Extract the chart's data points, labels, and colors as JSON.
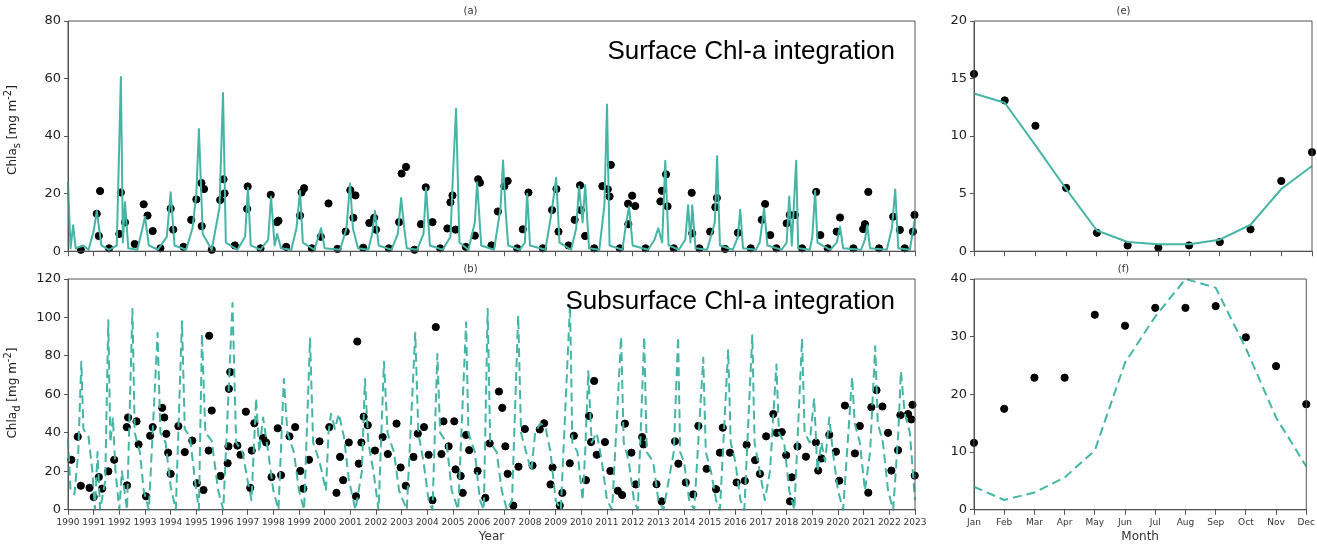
{
  "chart_data": [
    {
      "type": "line",
      "title": "(a)",
      "ylabel": "Chla$_{s}$  [mg m$^{-2}$]",
      "annotations": [
        "Surface Chl-a integration"
      ],
      "xlim": [
        1990,
        2023
      ],
      "xticks": [
        1990,
        1991,
        1992,
        1993,
        1994,
        1995,
        1996,
        1997,
        1998,
        1999,
        2000,
        2001,
        2002,
        2003,
        2004,
        2005,
        2006,
        2007,
        2008,
        2009,
        2010,
        2011,
        2012,
        2013,
        2014,
        2015,
        2016,
        2017,
        2018,
        2019,
        2020,
        2021,
        2022,
        2023
      ],
      "ylim": [
        0,
        80
      ],
      "yticks": [
        0,
        20,
        40,
        60,
        80
      ],
      "tick_labels": "y",
      "series": [
        {
          "type": "line",
          "color": "#45b5a5",
          "line_style": "solid",
          "x": [
            1990,
            1990.1,
            1990.2,
            1990.3,
            1990.6,
            1990.8,
            1991,
            1991.12,
            1991.3,
            1991.6,
            1991.9,
            1992.06,
            1992.14,
            1992.22,
            1992.35,
            1992.7,
            1992.85,
            1993,
            1993.15,
            1993.5,
            1993.85,
            1994,
            1994.15,
            1994.6,
            1994.85,
            1995,
            1995.1,
            1995.25,
            1995.6,
            1995.9,
            1996.04,
            1996.15,
            1996.6,
            1996.9,
            1997.01,
            1997.12,
            1997.5,
            1997.8,
            1997.91,
            1998.05,
            1998.15,
            1998.3,
            1998.7,
            1998.9,
            1999.04,
            1999.15,
            1999.6,
            1999.86,
            2000,
            2000.6,
            2000.85,
            2000.99,
            2001.1,
            2001.3,
            2001.7,
            2001.85,
            2001.96,
            2002.1,
            2002.6,
            2002.85,
            2002.98,
            2003.1,
            2003.2,
            2003.6,
            2003.85,
            2003.95,
            2004.1,
            2004.6,
            2004.9,
            2005,
            2005.12,
            2005.25,
            2005.6,
            2005.85,
            2005.94,
            2006.1,
            2006.6,
            2006.85,
            2006.95,
            2007.05,
            2007.15,
            2007.6,
            2007.8,
            2007.89,
            2008,
            2008.6,
            2008.85,
            2009.02,
            2009.15,
            2009.6,
            2009.8,
            2009.91,
            2010.05,
            2010.15,
            2010.3,
            2010.7,
            2010.9,
            2011,
            2011.1,
            2011.6,
            2011.75,
            2011.86,
            2012,
            2012.6,
            2012.85,
            2013,
            2013.15,
            2013.27,
            2013.4,
            2013.8,
            2014.05,
            2014.16,
            2014.25,
            2014.32,
            2014.45,
            2014.9,
            2015.2,
            2015.29,
            2015.4,
            2015.9,
            2016.1,
            2016.19,
            2016.3,
            2016.8,
            2016.95,
            2017.05,
            2017.12,
            2017.25,
            2017.8,
            2018,
            2018.1,
            2018.2,
            2018.37,
            2018.45,
            2018.9,
            2019,
            2019.11,
            2019.2,
            2019.7,
            2019.95,
            2020.08,
            2020.2,
            2020.9,
            2021.05,
            2021.14,
            2021.25,
            2021.9,
            2022.1,
            2022.23,
            2022.35,
            2022.8,
            2023
          ],
          "values": [
            24,
            1,
            9,
            1,
            2,
            0.5,
            7,
            14,
            2,
            0.5,
            2,
            60.5,
            3,
            17,
            1,
            0.5,
            6,
            12,
            2,
            0.5,
            5,
            20.5,
            2,
            0.5,
            8,
            20,
            42.5,
            6,
            0.5,
            15,
            55,
            3,
            0.5,
            5,
            22,
            2,
            0.5,
            4,
            19,
            2,
            6,
            1,
            0.5,
            8,
            21,
            3,
            0.5,
            8,
            1,
            0.5,
            8,
            23.5,
            8,
            1,
            0.5,
            6,
            14,
            2,
            0.5,
            6,
            18.5,
            8,
            1,
            0.5,
            6,
            22,
            2,
            0.5,
            5,
            27,
            49.5,
            3,
            0.5,
            10,
            24,
            2,
            0.5,
            15,
            31.5,
            14,
            2,
            0.5,
            3,
            20,
            2,
            0.5,
            14,
            25.5,
            3,
            0.5,
            8,
            22.5,
            10,
            23,
            1,
            0.5,
            16,
            51,
            2,
            0.5,
            10,
            15.5,
            2,
            0.5,
            4,
            8,
            3,
            31.4,
            2,
            0.5,
            4,
            16,
            3,
            16,
            1,
            0.5,
            10,
            33,
            2,
            0.5,
            5,
            14.4,
            1,
            0.5,
            3,
            10,
            15,
            2,
            0.5,
            3,
            19,
            2,
            31.4,
            1,
            0.5,
            5,
            21,
            3,
            0.5,
            3,
            8.5,
            1,
            0.5,
            4,
            9,
            1,
            0.5,
            8,
            21.4,
            1,
            0.5,
            11.5
          ]
        },
        {
          "type": "scatter",
          "color": "#000000",
          "marker": "circle",
          "x": [
            1990.5,
            1991.12,
            1991.2,
            1991.25,
            1991.6,
            1992,
            1992.06,
            1992.22,
            1992.6,
            1992.95,
            1993.1,
            1993.3,
            1993.6,
            1994,
            1994.1,
            1994.5,
            1994.8,
            1995,
            1995.2,
            1995.21,
            1995.3,
            1995.6,
            1995.93,
            1996.06,
            1996.1,
            1996.5,
            1996.98,
            1997,
            1997.5,
            1997.9,
            1998.14,
            1998.2,
            1998.5,
            1999.04,
            1999.1,
            1999.2,
            1999.5,
            1999.85,
            2000.15,
            2000.5,
            2000.82,
            2001,
            2001.12,
            2001.2,
            2001.5,
            2001.74,
            2001.93,
            2002,
            2002.5,
            2002.9,
            2003,
            2003.17,
            2003.5,
            2003.75,
            2003.94,
            2004.2,
            2004.5,
            2004.78,
            2004.9,
            2004.98,
            2005.1,
            2005.5,
            2005.85,
            2005.98,
            2006.05,
            2006.5,
            2006.75,
            2007,
            2007.13,
            2007.5,
            2007.72,
            2007.94,
            2008.5,
            2008.86,
            2009.03,
            2009.11,
            2009.5,
            2009.74,
            2009.95,
            2009.98,
            2010.15,
            2010.5,
            2010.82,
            2011.03,
            2011.1,
            2011.15,
            2011.5,
            2011.82,
            2011.83,
            2011.98,
            2012.1,
            2012.5,
            2013.08,
            2013.14,
            2013.3,
            2013.36,
            2013.6,
            2014.3,
            2014.32,
            2014.6,
            2015.02,
            2015.22,
            2015.28,
            2015.6,
            2016.1,
            2016.6,
            2017.03,
            2017.16,
            2017.36,
            2017.6,
            2018,
            2018.12,
            2018.32,
            2018.6,
            2019.15,
            2019.31,
            2019.6,
            2019.95,
            2020.08,
            2020.6,
            2020.98,
            2021.05,
            2021.18,
            2021.6,
            2022.15,
            2022.41,
            2022.6,
            2022.92,
            2022.98
          ],
          "values": [
            0.5,
            13,
            5.3,
            20.9,
            1,
            6,
            20.4,
            10,
            2.5,
            16.3,
            12.4,
            7,
            1,
            14.8,
            7.5,
            1.5,
            10.9,
            18,
            23.7,
            8.7,
            21.6,
            0.5,
            17.8,
            25,
            20.1,
            2,
            14.7,
            22.5,
            1,
            19.6,
            10.1,
            10.6,
            1.5,
            12.4,
            20.4,
            21.9,
            1,
            5,
            16.6,
            0.8,
            6.8,
            21.2,
            11.6,
            19.4,
            1.2,
            9.8,
            11.6,
            7.5,
            1,
            10.1,
            27,
            29.3,
            0.5,
            9.4,
            22.2,
            10.1,
            1,
            7.9,
            17,
            19.4,
            7.5,
            1.5,
            5.4,
            25,
            23.8,
            2,
            13.8,
            22.6,
            24.4,
            1,
            7.6,
            20.4,
            1,
            14.3,
            21.6,
            6.8,
            2,
            10.9,
            22.9,
            14.3,
            5.3,
            1,
            22.6,
            21.5,
            19,
            30,
            1,
            16.5,
            9.4,
            19.3,
            15.7,
            1,
            17.3,
            21,
            26.7,
            15.6,
            1,
            20.3,
            6.2,
            1,
            6.8,
            15.3,
            18.5,
            0.8,
            6.4,
            1,
            10.9,
            16.4,
            5.6,
            1,
            9.7,
            12.6,
            12.6,
            1,
            20.6,
            5.6,
            1,
            6.8,
            11.7,
            1,
            7.7,
            9.4,
            20.6,
            1,
            12,
            7.4,
            1,
            6.8,
            12.6
          ]
        }
      ]
    },
    {
      "type": "line",
      "title": "(e)",
      "categories": [
        null,
        null,
        null,
        null,
        null,
        null,
        null,
        null,
        null,
        null,
        null,
        null
      ],
      "ylim": [
        0,
        20
      ],
      "yticks": [
        0,
        5,
        10,
        15,
        20
      ],
      "tick_labels": "y",
      "series": [
        {
          "type": "line",
          "color": "#45b5a5",
          "line_style": "solid",
          "values": [
            13.7,
            12.9,
            9.2,
            5.4,
            1.8,
            0.8,
            0.6,
            0.6,
            1,
            2.3,
            5.4,
            7.4
          ]
        },
        {
          "type": "scatter",
          "color": "#000000",
          "marker": "circle",
          "values": [
            15.4,
            13.1,
            10.9,
            5.5,
            1.6,
            0.5,
            0.3,
            0.5,
            0.8,
            1.9,
            6.1,
            8.6
          ]
        }
      ]
    },
    {
      "type": "line",
      "title": "(b)",
      "xlabel": "Year",
      "ylabel": "Chla$_{d}$ [mg m$^{-2}$]",
      "annotations": [
        "Subsurface Chl-a integration"
      ],
      "xlim": [
        1990,
        2023
      ],
      "xticks": [
        1990,
        1991,
        1992,
        1993,
        1994,
        1995,
        1996,
        1997,
        1998,
        1999,
        2000,
        2001,
        2002,
        2003,
        2004,
        2005,
        2006,
        2007,
        2008,
        2009,
        2010,
        2011,
        2012,
        2013,
        2014,
        2015,
        2016,
        2017,
        2018,
        2019,
        2020,
        2021,
        2022,
        2023
      ],
      "ylim": [
        0,
        120
      ],
      "yticks": [
        0,
        20,
        40,
        60,
        80,
        100,
        120
      ],
      "series": [
        {
          "type": "line",
          "color": "#45b5a5",
          "line_style": "dashed",
          "x": [
            1990,
            1990.1,
            1990.25,
            1990.4,
            1990.52,
            1990.6,
            1990.8,
            1990.95,
            1991.05,
            1991.15,
            1991.25,
            1991.45,
            1991.57,
            1991.65,
            1991.75,
            1991.85,
            1992,
            1992.1,
            1992.3,
            1992.51,
            1992.6,
            1992.8,
            1992.95,
            1993.15,
            1993.49,
            1993.6,
            1993.8,
            1994,
            1994.2,
            1994.44,
            1994.55,
            1994.75,
            1994.95,
            1995.1,
            1995.22,
            1995.35,
            1995.6,
            1995.85,
            1996.05,
            1996.41,
            1996.55,
            1996.8,
            1997,
            1997.15,
            1997.33,
            1997.45,
            1997.6,
            1997.8,
            1998,
            1998.2,
            1998.41,
            1998.55,
            1998.8,
            1999,
            1999.2,
            1999.43,
            1999.55,
            1999.8,
            2000.05,
            2000.15,
            2000.25,
            2000.4,
            2000.55,
            2000.75,
            2000.95,
            2001.2,
            2001.45,
            2001.57,
            2001.7,
            2001.9,
            2002.1,
            2002.31,
            2002.45,
            2002.7,
            2002.9,
            2003.2,
            2003.53,
            2003.65,
            2003.85,
            2004.05,
            2004.2,
            2004.39,
            2004.5,
            2004.75,
            2004.95,
            2005.2,
            2005.51,
            2005.6,
            2005.85,
            2006.05,
            2006.2,
            2006.35,
            2006.45,
            2006.7,
            2006.9,
            2007.1,
            2007.3,
            2007.54,
            2007.65,
            2007.85,
            2008.05,
            2008.2,
            2008.4,
            2008.6,
            2008.8,
            2009,
            2009.2,
            2009.56,
            2009.65,
            2009.85,
            2010.05,
            2010.15,
            2010.27,
            2010.4,
            2010.6,
            2010.8,
            2011,
            2011.2,
            2011.55,
            2011.65,
            2011.85,
            2012.05,
            2012.2,
            2012.45,
            2012.55,
            2012.8,
            2013,
            2013.2,
            2013.6,
            2013.77,
            2013.85,
            2014,
            2014.2,
            2014.4,
            2014.75,
            2014.85,
            2015.05,
            2015.25,
            2015.4,
            2015.72,
            2015.82,
            2016,
            2016.2,
            2016.35,
            2016.66,
            2016.75,
            2016.95,
            2017.15,
            2017.35,
            2017.6,
            2017.7,
            2017.9,
            2018.1,
            2018.3,
            2018.6,
            2018.7,
            2018.9,
            2019.07,
            2019.2,
            2019.35,
            2019.5,
            2019.66,
            2019.8,
            2020,
            2020.2,
            2020.55,
            2020.65,
            2020.85,
            2021.05,
            2021.25,
            2021.45,
            2021.55,
            2021.75,
            2021.95,
            2022.15,
            2022.35,
            2022.45,
            2022.6,
            2022.8,
            2023
          ],
          "values": [
            37,
            10,
            8,
            30,
            77,
            42,
            38,
            20,
            0,
            30,
            0,
            15,
            98.5,
            35,
            48,
            20,
            0,
            20,
            0,
            104.5,
            40,
            30,
            10,
            0,
            92,
            40,
            35,
            12,
            0,
            98,
            42,
            38,
            15,
            0,
            91.5,
            40,
            36,
            10,
            0,
            107.5,
            35,
            30,
            15,
            5,
            58,
            30,
            48,
            30,
            10,
            0,
            68,
            40,
            30,
            10,
            0,
            89,
            35,
            25,
            10,
            40,
            50,
            42,
            50,
            38,
            15,
            0,
            20,
            68,
            35,
            20,
            0,
            77,
            40,
            30,
            10,
            0,
            92,
            40,
            25,
            5,
            0,
            81,
            40,
            35,
            10,
            0,
            97.5,
            40,
            30,
            5,
            0,
            104.5,
            35,
            30,
            10,
            0,
            5,
            101,
            40,
            30,
            20,
            40,
            45,
            43,
            30,
            5,
            0,
            107,
            35,
            30,
            5,
            30,
            72,
            35,
            40,
            25,
            5,
            0,
            90,
            35,
            25,
            5,
            0,
            90,
            30,
            25,
            5,
            0,
            30,
            90,
            30,
            25,
            5,
            0,
            79,
            30,
            20,
            5,
            0,
            83,
            35,
            25,
            5,
            0,
            90.7,
            35,
            20,
            5,
            20,
            75.5,
            40,
            35,
            10,
            0,
            89,
            40,
            35,
            58,
            20,
            35,
            25,
            48,
            30,
            10,
            0,
            69,
            45,
            35,
            10,
            30,
            85,
            45,
            35,
            10,
            0,
            40,
            72,
            50,
            40,
            5
          ]
        },
        {
          "type": "scatter",
          "color": "#000000",
          "marker": "circle",
          "x": [
            1990.13,
            1990.38,
            1990.5,
            1990.84,
            1991,
            1991.2,
            1991.33,
            1991.57,
            1991.8,
            1992.29,
            1992.34,
            1992.3,
            1992.67,
            1992.75,
            1993.2,
            1993.3,
            1993.04,
            1993.67,
            1993.75,
            1993.83,
            1993.9,
            1994,
            1994.3,
            1994.55,
            1994.84,
            1995.02,
            1995.28,
            1995.5,
            1995.6,
            1995.48,
            1995.94,
            1996.27,
            1996.32,
            1996.25,
            1996.22,
            1996.6,
            1996.72,
            1996.93,
            1997.1,
            1997.16,
            1997.26,
            1997.6,
            1997.72,
            1997.93,
            1998.3,
            1998.17,
            1998.63,
            1998.85,
            1999.05,
            1999.17,
            1999.39,
            1999.8,
            2000.18,
            2000.46,
            2000.6,
            2000.72,
            2000.94,
            2001.22,
            2001.27,
            2001.33,
            2001.43,
            2001.52,
            2001.68,
            2001.96,
            2002.26,
            2002.46,
            2002.8,
            2002.96,
            2003.16,
            2003.46,
            2003.63,
            2003.87,
            2004.05,
            2004.33,
            2004.2,
            2004.55,
            2004.63,
            2004.83,
            2005.05,
            2005.1,
            2005.3,
            2005.38,
            2005.51,
            2005.63,
            2005.96,
            2006.26,
            2006.43,
            2006.79,
            2006.92,
            2007.04,
            2007.13,
            2007.35,
            2007.55,
            2007.8,
            2008.1,
            2008.38,
            2008.55,
            2008.8,
            2008.88,
            2009.16,
            2009.26,
            2009.55,
            2009.71,
            2010.18,
            2010.3,
            2010.38,
            2010.5,
            2010.6,
            2010.92,
            2011.13,
            2011.42,
            2011.59,
            2011.7,
            2011.95,
            2012.12,
            2012.37,
            2012.42,
            2012.93,
            2013.13,
            2013.65,
            2013.78,
            2014.07,
            2014.36,
            2014.56,
            2014.88,
            2015.25,
            2015.51,
            2015.4,
            2015.79,
            2016.05,
            2016.37,
            2016.44,
            2016.77,
            2016.96,
            2017.2,
            2017.48,
            2017.61,
            2017.81,
            2017.98,
            2018.13,
            2018.2,
            2018.42,
            2018.75,
            2019.14,
            2019.23,
            2019.36,
            2019.66,
            2019.92,
            2020.05,
            2020.27,
            2020.66,
            2020.85,
            2021.18,
            2021.3,
            2021.5,
            2021.73,
            2021.95,
            2022.08,
            2022.34,
            2022.43,
            2022.73,
            2022.86,
            2022.9,
            2022.99
          ],
          "values": [
            26,
            38,
            12.5,
            11.4,
            6.6,
            17,
            11,
            20,
            26,
            43,
            48,
            12.7,
            46,
            34,
            38.5,
            43,
            7,
            53,
            48,
            39.5,
            29.7,
            18.7,
            43.5,
            30,
            36,
            13.8,
            10.3,
            90.5,
            51.6,
            30.8,
            17.6,
            62.9,
            71.6,
            33,
            24.2,
            33.4,
            28.6,
            51,
            11.4,
            30.8,
            45,
            37.4,
            35,
            17,
            18,
            42.4,
            38.2,
            43,
            20.2,
            11,
            26,
            35.6,
            43,
            8.8,
            27.5,
            15.4,
            35,
            7,
            87.5,
            24,
            35,
            48.4,
            44,
            30.8,
            37.8,
            29,
            44.8,
            22,
            12.5,
            27.5,
            39.6,
            43,
            28.6,
            95,
            5,
            29,
            46,
            33,
            46,
            21,
            17.6,
            8.8,
            38.9,
            31,
            20.2,
            6.2,
            34.5,
            61.5,
            53,
            33,
            18.7,
            2.2,
            22.4,
            42,
            23,
            41.8,
            45,
            13.2,
            22,
            2.2,
            8.8,
            24.2,
            38.5,
            15.4,
            48.8,
            35.2,
            67,
            28.6,
            35.2,
            20.2,
            9.9,
            7.7,
            44.8,
            29.7,
            13.2,
            37.8,
            34,
            13.3,
            4.4,
            35.6,
            24,
            14.2,
            8,
            43.6,
            21.3,
            10.7,
            42.7,
            29.7,
            29.7,
            14.2,
            15.1,
            33.8,
            25.8,
            18.7,
            38.2,
            49.8,
            40,
            40.4,
            28.4,
            4.4,
            16.9,
            32.9,
            27.6,
            35,
            20.4,
            26.7,
            39,
            30.2,
            15.1,
            54.2,
            29.3,
            43.6,
            8.9,
            53.3,
            62.2,
            53.7,
            40,
            20.4,
            31,
            49.2,
            49.8,
            47,
            54.6,
            17.8
          ]
        }
      ]
    },
    {
      "type": "line",
      "title": "(f)",
      "xlabel": "Month",
      "categories": [
        "Jan",
        "Feb",
        "Mar",
        "Apr",
        "May",
        "Jun",
        "Jul",
        "Aug",
        "Sep",
        "Oct",
        "Nov",
        "Dec"
      ],
      "ylim": [
        0,
        40
      ],
      "yticks": [
        0,
        10,
        20,
        30,
        40
      ],
      "series": [
        {
          "type": "line",
          "color": "#45b5a5",
          "line_style": "dashed",
          "values": [
            4,
            1.7,
            3,
            5.6,
            10.3,
            25.5,
            33.5,
            40,
            38.5,
            28,
            16,
            7.5
          ]
        },
        {
          "type": "scatter",
          "color": "#000000",
          "marker": "circle",
          "values": [
            11.6,
            17.5,
            22.9,
            22.9,
            33.8,
            31.9,
            35,
            35,
            35.3,
            29.9,
            24.9,
            18.3
          ]
        }
      ]
    }
  ]
}
